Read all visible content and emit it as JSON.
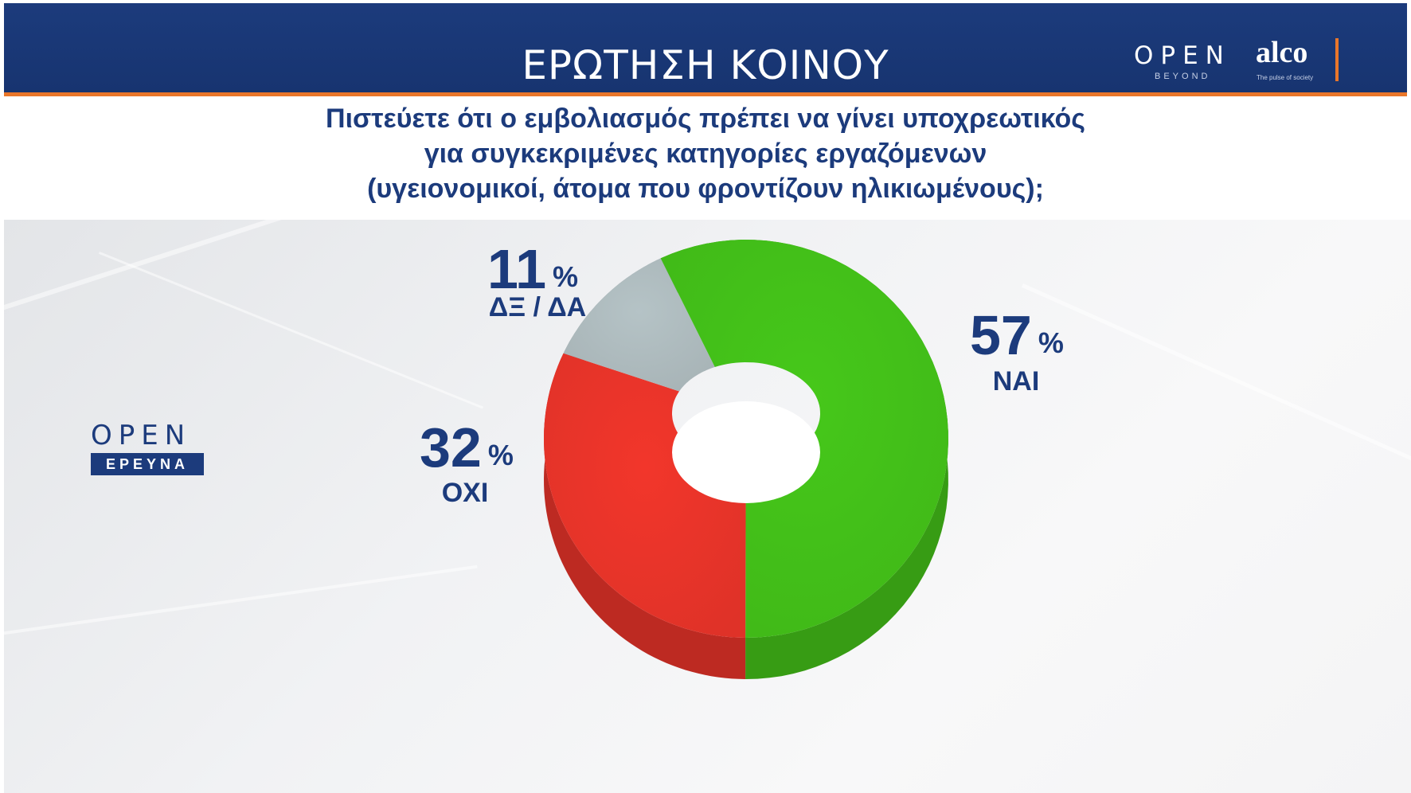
{
  "header": {
    "title": "ΕΡΩΤΗΣΗ ΚΟΙΝΟΥ",
    "brand_open": "OPEN",
    "brand_beyond": "BEYOND",
    "brand_alco": "alco",
    "brand_tagline": "The pulse of society",
    "accent_color": "#e9762a",
    "bar_color": "#1c3b7c"
  },
  "question": {
    "line1": "Πιστεύετε ότι ο εμβολιασμός πρέπει να γίνει υποχρεωτικός",
    "line2": "για συγκεκριμένες κατηγορίες εργαζόμενων",
    "line3": "(υγειονομικοί, άτομα που φροντίζουν ηλικιωμένους);"
  },
  "watermark": {
    "open": "OPEN",
    "sub": "ΕΡΕΥΝΑ"
  },
  "chart_data": {
    "type": "pie",
    "variant": "3d-donut",
    "title": "",
    "categories": [
      "ΝΑΙ",
      "ΟΧΙ",
      "ΔΞ / ΔΑ"
    ],
    "values": [
      57,
      32,
      11
    ],
    "value_labels": [
      "57",
      "32",
      "11"
    ],
    "unit": "%",
    "colors": [
      "#46c81a",
      "#f2362b",
      "#b5c3c6"
    ],
    "legend": "none"
  }
}
